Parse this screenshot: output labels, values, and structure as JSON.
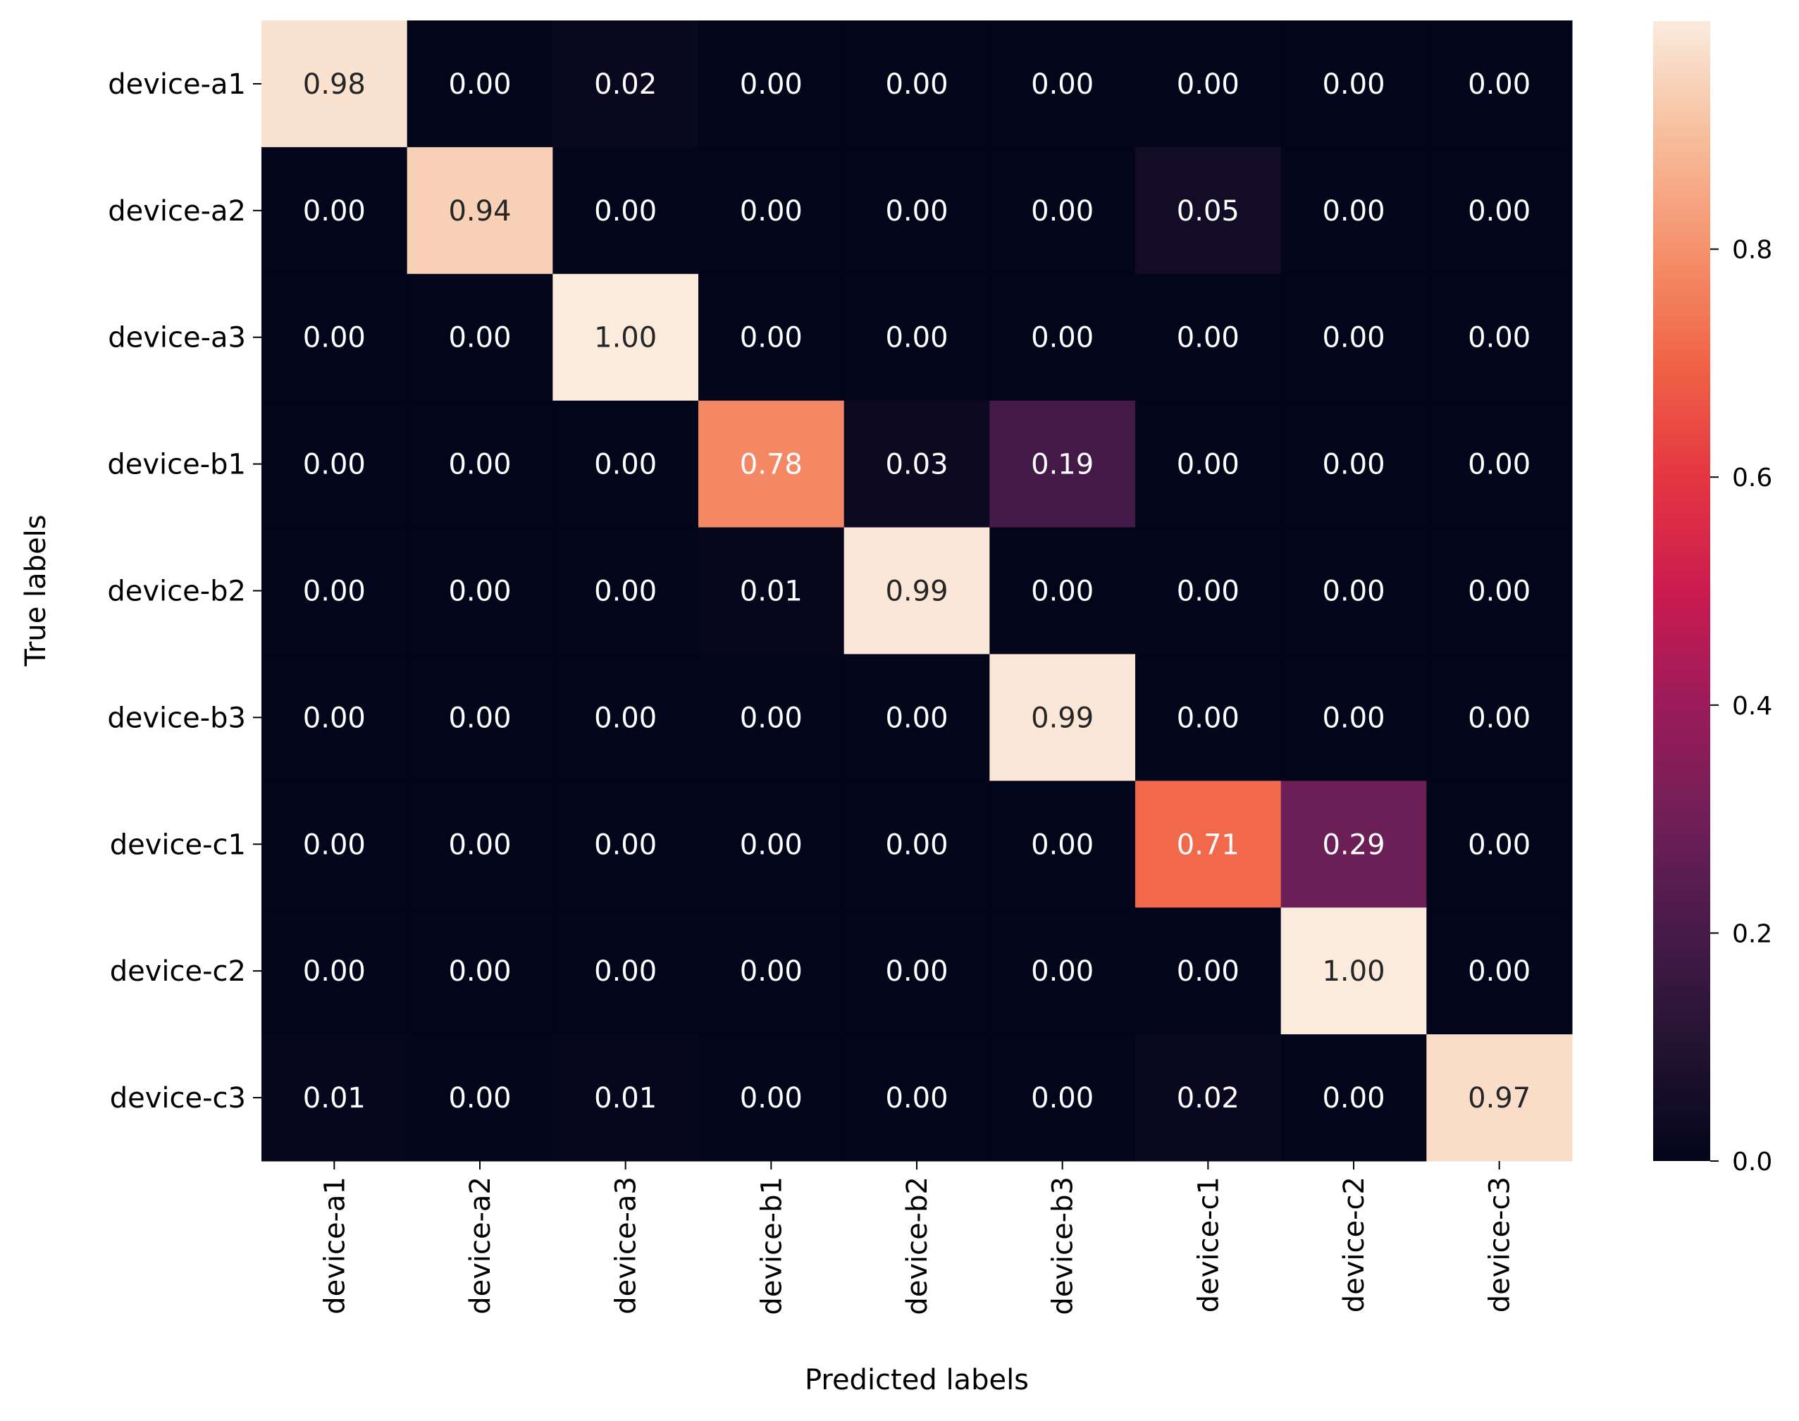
{
  "chart_data": {
    "type": "heatmap",
    "title": "",
    "xlabel": "Predicted labels",
    "ylabel": "True labels",
    "x_categories": [
      "device-a1",
      "device-a2",
      "device-a3",
      "device-b1",
      "device-b2",
      "device-b3",
      "device-c1",
      "device-c2",
      "device-c3"
    ],
    "y_categories": [
      "device-a1",
      "device-a2",
      "device-a3",
      "device-b1",
      "device-b2",
      "device-b3",
      "device-c1",
      "device-c2",
      "device-c3"
    ],
    "values": [
      [
        0.98,
        0.0,
        0.02,
        0.0,
        0.0,
        0.0,
        0.0,
        0.0,
        0.0
      ],
      [
        0.0,
        0.94,
        0.0,
        0.0,
        0.0,
        0.0,
        0.05,
        0.0,
        0.0
      ],
      [
        0.0,
        0.0,
        1.0,
        0.0,
        0.0,
        0.0,
        0.0,
        0.0,
        0.0
      ],
      [
        0.0,
        0.0,
        0.0,
        0.78,
        0.03,
        0.19,
        0.0,
        0.0,
        0.0
      ],
      [
        0.0,
        0.0,
        0.0,
        0.01,
        0.99,
        0.0,
        0.0,
        0.0,
        0.0
      ],
      [
        0.0,
        0.0,
        0.0,
        0.0,
        0.0,
        0.99,
        0.0,
        0.0,
        0.0
      ],
      [
        0.0,
        0.0,
        0.0,
        0.0,
        0.0,
        0.0,
        0.71,
        0.29,
        0.0
      ],
      [
        0.0,
        0.0,
        0.0,
        0.0,
        0.0,
        0.0,
        0.0,
        1.0,
        0.0
      ],
      [
        0.01,
        0.0,
        0.01,
        0.0,
        0.0,
        0.0,
        0.02,
        0.0,
        0.97
      ]
    ],
    "colormap": "rocket",
    "value_range": [
      0.0,
      1.0
    ],
    "colorbar": {
      "ticks": [
        "0.0",
        "0.2",
        "0.4",
        "0.6",
        "0.8"
      ],
      "tick_values": [
        0,
        0.2,
        0.4,
        0.6,
        0.8
      ]
    },
    "annotation_format": "0.00",
    "legend": "colorbar-right"
  }
}
